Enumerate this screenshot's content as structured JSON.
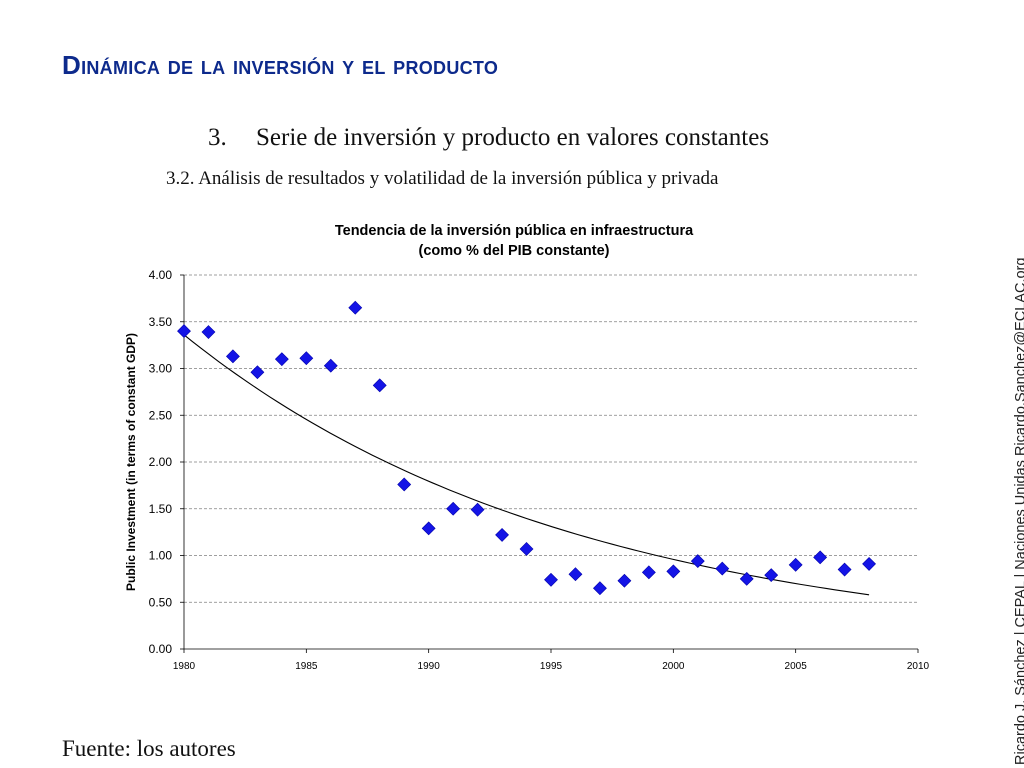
{
  "slide": {
    "title": "Dinámica de la inversión y el producto",
    "section_number": "3.",
    "section_title": "Serie de inversión y producto en valores constantes",
    "subsection": "3.2. Análisis de resultados y volatilidad de la inversión pública y privada",
    "source": "Fuente: los autores",
    "credit": "Ricardo J. Sánchez | CEPAL | Naciones Unidas   Ricardo.Sanchez@ECLAC.org"
  },
  "colors": {
    "title": "#0d2a8c",
    "marker": "#1414e6",
    "grid": "#808080",
    "trend": "#000000"
  },
  "chart_data": {
    "type": "scatter",
    "title_line1": "Tendencia de la inversión pública en infraestructura",
    "title_line2": "(como % del PIB constante)",
    "ylabel": "Public Investment (in terms of constant GDP)",
    "xlabel": "",
    "xlim": [
      1980,
      2010
    ],
    "ylim": [
      0,
      4
    ],
    "x_ticks": [
      "1980",
      "1985",
      "1990",
      "1995",
      "2000",
      "2005",
      "2010"
    ],
    "y_ticks": [
      "0.00",
      "0.50",
      "1.00",
      "1.50",
      "2.00",
      "2.50",
      "3.00",
      "3.50",
      "4.00"
    ],
    "grid": "horizontal dashed",
    "marker": "diamond",
    "series": [
      {
        "x": [
          1980,
          1981,
          1982,
          1983,
          1984,
          1985,
          1986,
          1987,
          1988,
          1989,
          1990,
          1991,
          1992,
          1993,
          1994,
          1995,
          1996,
          1997,
          1998,
          1999,
          2000,
          2001,
          2002,
          2003,
          2004,
          2005,
          2006,
          2007,
          2008
        ],
        "y": [
          3.4,
          3.39,
          3.13,
          2.96,
          3.1,
          3.11,
          3.03,
          3.65,
          2.82,
          1.76,
          1.29,
          1.5,
          1.49,
          1.22,
          1.07,
          0.74,
          0.8,
          0.65,
          0.73,
          0.82,
          0.83,
          0.94,
          0.86,
          0.75,
          0.79,
          0.9,
          0.98,
          0.85,
          0.91
        ]
      }
    ],
    "trendline": {
      "type": "exponential",
      "x_start": 1980,
      "x_end": 2008,
      "y_start": 3.36,
      "y_end": 0.58
    }
  }
}
